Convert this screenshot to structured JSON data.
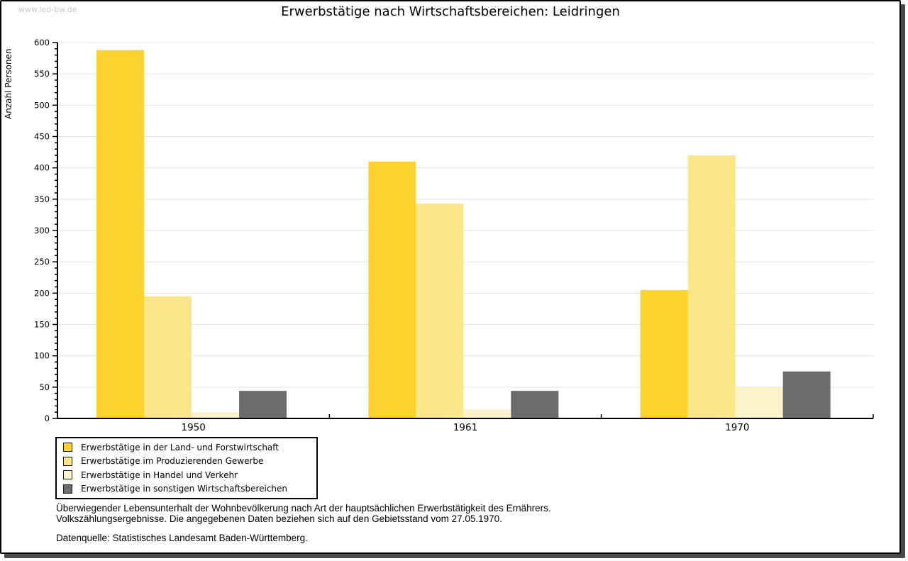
{
  "watermark": "www.leo-bw.de",
  "chart_data": {
    "type": "bar",
    "title": "Erwerbstätige nach Wirtschaftsbereichen: Leidringen",
    "ylabel": "Anzahl Personen",
    "categories": [
      "1950",
      "1961",
      "1970"
    ],
    "series": [
      {
        "name": "Erwerbstätige in der Land- und Forstwirtschaft",
        "color": "#FCD32D",
        "values": [
          588,
          410,
          205
        ]
      },
      {
        "name": "Erwerbstätige im Produzierenden Gewerbe",
        "color": "#FBE78A",
        "values": [
          195,
          343,
          420
        ]
      },
      {
        "name": "Erwerbstätige in Handel und Verkehr",
        "color": "#FCF2CC",
        "values": [
          10,
          15,
          51
        ]
      },
      {
        "name": "Erwerbstätige in sonstigen Wirtschaftsbereichen",
        "color": "#6C6C6C",
        "values": [
          44,
          44,
          75
        ]
      }
    ],
    "ylim": [
      0,
      600
    ],
    "ytick_major": 50,
    "ytick_minor": 10,
    "grid": "horizontal-major-gridlines",
    "legend_position": "bottom-left",
    "colors": {
      "axis": "#000000",
      "gridline": "#e0e0e0",
      "background": "#ffffff",
      "watermark_text": "#c9c9c9"
    }
  },
  "footer": {
    "note_line1": "Überwiegender Lebensunterhalt der Wohnbevölkerung nach Art der hauptsächlichen Erwerbstätigkeit des Ernährers.",
    "note_line2": "Volkszählungsergebnisse. Die angegebenen Daten beziehen sich auf den Gebietsstand vom 27.05.1970.",
    "source": "Datenquelle: Statistisches Landesamt Baden-Württemberg."
  }
}
